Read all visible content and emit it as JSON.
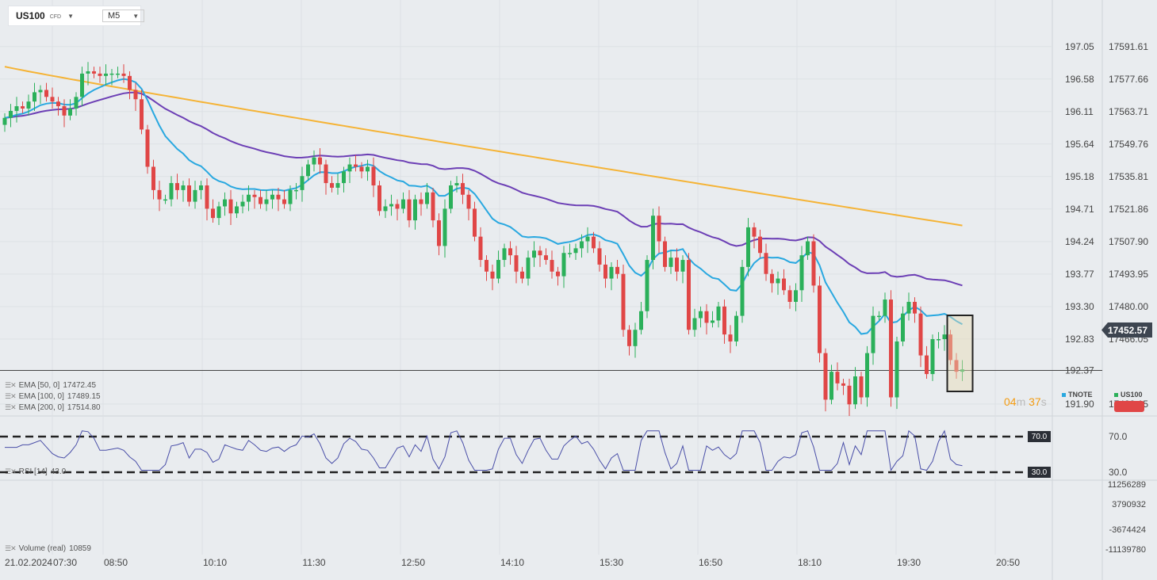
{
  "symbol": {
    "name": "US100",
    "type": "CFD",
    "timeframe": "M5"
  },
  "indicators": [
    {
      "label": "EMA [50, 0]",
      "value": "17472.45",
      "color": "#29a8e0"
    },
    {
      "label": "EMA [100, 0]",
      "value": "17489.15",
      "color": "#6c3fb5"
    },
    {
      "label": "EMA [200, 0]",
      "value": "17514.80",
      "color": "#f5b335"
    }
  ],
  "rsi": {
    "label": "RSI [14]",
    "value": "43.0",
    "upper": "70.0",
    "lower": "30.0"
  },
  "volume": {
    "label": "Volume (real)",
    "value": "10859"
  },
  "timer": {
    "minutes": "04",
    "m": "m",
    "seconds": "37",
    "s": "s"
  },
  "current_price": "17452.57",
  "legend": {
    "tnote": "TNOTE",
    "us100": "US100",
    "tnote_color": "#29a8e0",
    "us100_color": "#2bb05a"
  },
  "chart_data": {
    "type": "candlestick",
    "title": "",
    "x_start_label": "21.02.2024",
    "x_ticks": [
      "07:30",
      "08:50",
      "10:10",
      "11:30",
      "12:50",
      "14:10",
      "15:30",
      "16:50",
      "18:10",
      "19:30",
      "20:50"
    ],
    "y_left_ticks": [
      "197.05",
      "196.58",
      "196.11",
      "195.64",
      "195.18",
      "194.71",
      "194.24",
      "193.77",
      "193.30",
      "192.83",
      "192.37",
      "191.90"
    ],
    "y_right_ticks": [
      "17591.61",
      "17577.66",
      "17563.71",
      "17549.76",
      "17535.81",
      "17521.86",
      "17507.90",
      "17493.95",
      "17480.00",
      "17466.05",
      "17452.57",
      "17438.15"
    ],
    "ylim": [
      17433,
      17598
    ],
    "candles_close": [
      17561,
      17564,
      17566,
      17565,
      17568,
      17572,
      17573,
      17570,
      17568,
      17566,
      17562,
      17565,
      17570,
      17580,
      17581,
      17580,
      17579,
      17580,
      17580,
      17580,
      17579,
      17573,
      17569,
      17556,
      17540,
      17530,
      17526,
      17526,
      17533,
      17530,
      17532,
      17525,
      17530,
      17532,
      17522,
      17518,
      17523,
      17526,
      17520,
      17523,
      17525,
      17528,
      17527,
      17524,
      17526,
      17528,
      17526,
      17524,
      17530,
      17530,
      17536,
      17541,
      17544,
      17541,
      17533,
      17531,
      17533,
      17538,
      17541,
      17540,
      17538,
      17540,
      17532,
      17521,
      17523,
      17524,
      17522,
      17526,
      17517,
      17526,
      17524,
      17529,
      17517,
      17506,
      17522,
      17532,
      17533,
      17528,
      17522,
      17510,
      17500,
      17495,
      17492,
      17500,
      17505,
      17502,
      17495,
      17492,
      17501,
      17504,
      17502,
      17500,
      17495,
      17493,
      17503,
      17503,
      17505,
      17508,
      17510,
      17505,
      17498,
      17492,
      17497,
      17494,
      17470,
      17463,
      17470,
      17478,
      17500,
      17519,
      17508,
      17497,
      17501,
      17495,
      17500,
      17470,
      17475,
      17478,
      17473,
      17474,
      17480,
      17468,
      17465,
      17476,
      17497,
      17514,
      17510,
      17503,
      17494,
      17490,
      17492,
      17487,
      17482,
      17487,
      17502,
      17508,
      17489,
      17460,
      17440,
      17452,
      17447,
      17446,
      17438,
      17450,
      17441,
      17460,
      17476,
      17476,
      17483,
      17441,
      17465,
      17477,
      17482,
      17477,
      17459,
      17451,
      17466,
      17466,
      17468,
      17457,
      17452,
      17453
    ],
    "series": [
      {
        "name": "EMA [50, 0]",
        "last": 17472.45
      },
      {
        "name": "EMA [100, 0]",
        "last": 17489.15
      },
      {
        "name": "EMA [200, 0]",
        "last": 17514.8
      }
    ],
    "rsi_ticks": [
      "70.0",
      "30.0"
    ],
    "volume_ticks": [
      "11256289",
      "3790932",
      "-3674424",
      "-11139780"
    ]
  }
}
